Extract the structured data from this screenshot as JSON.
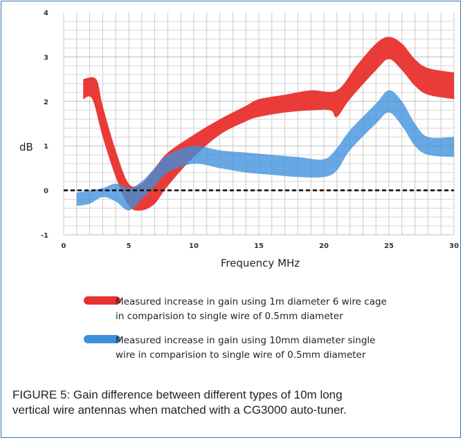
{
  "chart_data": {
    "type": "area",
    "xlabel": "Frequency MHz",
    "ylabel": "dB",
    "xlim": [
      0,
      30
    ],
    "ylim": [
      -1,
      4
    ],
    "xticks": [
      "0",
      "5",
      "10",
      "15",
      "20",
      "25",
      "30"
    ],
    "yticks": [
      "-1",
      "0",
      "1",
      "2",
      "3",
      "4"
    ],
    "grid": true,
    "reference_line": {
      "y": 0,
      "style": "dashed"
    },
    "series": [
      {
        "name_lines": [
          "Measured increase in gain using 1m diameter 6 wire cage",
          "in comparision to single wire of 0.5mm diameter"
        ],
        "color": "#e8322e",
        "upper": [
          [
            1.5,
            2.5
          ],
          [
            2.5,
            2.5
          ],
          [
            3,
            1.9
          ],
          [
            4,
            0.9
          ],
          [
            5,
            0.15
          ],
          [
            6,
            0.15
          ],
          [
            7,
            0.5
          ],
          [
            8,
            0.85
          ],
          [
            10,
            1.25
          ],
          [
            12,
            1.6
          ],
          [
            14,
            1.9
          ],
          [
            15,
            2.05
          ],
          [
            17,
            2.15
          ],
          [
            19,
            2.25
          ],
          [
            21,
            2.25
          ],
          [
            22.5,
            2.8
          ],
          [
            24,
            3.3
          ],
          [
            25,
            3.45
          ],
          [
            26,
            3.3
          ],
          [
            27,
            2.95
          ],
          [
            28,
            2.75
          ],
          [
            30,
            2.65
          ]
        ],
        "lower": [
          [
            1.5,
            2.05
          ],
          [
            2.2,
            2.05
          ],
          [
            3,
            1.2
          ],
          [
            4,
            0.3
          ],
          [
            5,
            -0.35
          ],
          [
            6,
            -0.45
          ],
          [
            7,
            -0.3
          ],
          [
            8,
            0.1
          ],
          [
            10,
            0.75
          ],
          [
            12,
            1.25
          ],
          [
            14,
            1.55
          ],
          [
            15,
            1.65
          ],
          [
            17,
            1.75
          ],
          [
            19,
            1.8
          ],
          [
            20.5,
            1.8
          ],
          [
            21,
            1.65
          ],
          [
            22,
            2.05
          ],
          [
            24,
            2.7
          ],
          [
            25,
            2.95
          ],
          [
            26,
            2.7
          ],
          [
            27,
            2.35
          ],
          [
            28,
            2.15
          ],
          [
            30,
            2.05
          ]
        ]
      },
      {
        "name_lines": [
          "Measured increase in gain using 10mm diameter single",
          "wire in comparision to single wire of 0.5mm diameter"
        ],
        "color": "#3d8fdc",
        "upper": [
          [
            1,
            -0.05
          ],
          [
            2,
            0.0
          ],
          [
            3,
            0.05
          ],
          [
            4,
            0.15
          ],
          [
            5,
            0.05
          ],
          [
            6,
            0.2
          ],
          [
            7,
            0.5
          ],
          [
            8,
            0.8
          ],
          [
            10,
            1.0
          ],
          [
            12,
            0.9
          ],
          [
            14,
            0.85
          ],
          [
            16,
            0.8
          ],
          [
            18,
            0.75
          ],
          [
            20,
            0.7
          ],
          [
            21,
            0.95
          ],
          [
            22,
            1.35
          ],
          [
            24,
            1.95
          ],
          [
            25,
            2.25
          ],
          [
            26,
            2.0
          ],
          [
            27,
            1.5
          ],
          [
            28,
            1.2
          ],
          [
            30,
            1.2
          ]
        ],
        "lower": [
          [
            1,
            -0.35
          ],
          [
            2,
            -0.3
          ],
          [
            3,
            -0.15
          ],
          [
            4,
            -0.25
          ],
          [
            5,
            -0.45
          ],
          [
            6,
            -0.2
          ],
          [
            7,
            0.1
          ],
          [
            8,
            0.4
          ],
          [
            10,
            0.6
          ],
          [
            12,
            0.5
          ],
          [
            14,
            0.4
          ],
          [
            16,
            0.35
          ],
          [
            18,
            0.3
          ],
          [
            20,
            0.3
          ],
          [
            21,
            0.45
          ],
          [
            22,
            0.9
          ],
          [
            24,
            1.5
          ],
          [
            25,
            1.75
          ],
          [
            26,
            1.45
          ],
          [
            27,
            1.0
          ],
          [
            28,
            0.8
          ],
          [
            30,
            0.75
          ]
        ]
      }
    ]
  },
  "caption": {
    "line1": "FIGURE 5: Gain difference between different types of 10m long",
    "line2": "vertical wire antennas when matched with a CG3000 auto-tuner."
  }
}
